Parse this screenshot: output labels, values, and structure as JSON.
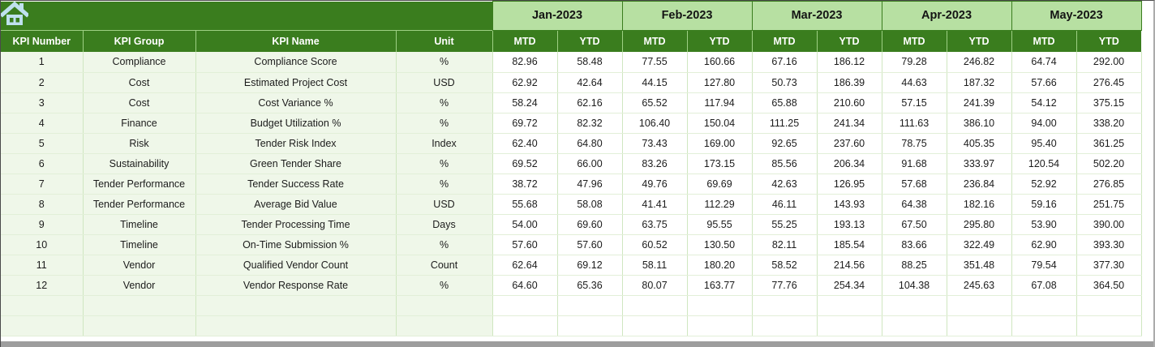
{
  "table": {
    "left_columns": [
      "KPI Number",
      "KPI Group",
      "KPI Name",
      "Unit"
    ],
    "months": [
      "Jan-2023",
      "Feb-2023",
      "Mar-2023",
      "Apr-2023",
      "May-2023"
    ],
    "period_labels": [
      "MTD",
      "YTD"
    ],
    "rows": [
      {
        "kpi_number": "1",
        "kpi_group": "Compliance",
        "kpi_name": "Compliance Score",
        "unit": "%",
        "values": [
          "82.96",
          "58.48",
          "77.55",
          "160.66",
          "67.16",
          "186.12",
          "79.28",
          "246.82",
          "64.74",
          "292.00"
        ]
      },
      {
        "kpi_number": "2",
        "kpi_group": "Cost",
        "kpi_name": "Estimated Project Cost",
        "unit": "USD",
        "values": [
          "62.92",
          "42.64",
          "44.15",
          "127.80",
          "50.73",
          "186.39",
          "44.63",
          "187.32",
          "57.66",
          "276.45"
        ]
      },
      {
        "kpi_number": "3",
        "kpi_group": "Cost",
        "kpi_name": "Cost Variance %",
        "unit": "%",
        "values": [
          "58.24",
          "62.16",
          "65.52",
          "117.94",
          "65.88",
          "210.60",
          "57.15",
          "241.39",
          "54.12",
          "375.15"
        ]
      },
      {
        "kpi_number": "4",
        "kpi_group": "Finance",
        "kpi_name": "Budget Utilization %",
        "unit": "%",
        "values": [
          "69.72",
          "82.32",
          "106.40",
          "150.04",
          "111.25",
          "241.34",
          "111.63",
          "386.10",
          "94.00",
          "338.20"
        ]
      },
      {
        "kpi_number": "5",
        "kpi_group": "Risk",
        "kpi_name": "Tender Risk Index",
        "unit": "Index",
        "values": [
          "62.40",
          "64.80",
          "73.43",
          "169.00",
          "92.65",
          "237.60",
          "78.75",
          "405.35",
          "95.40",
          "361.25"
        ]
      },
      {
        "kpi_number": "6",
        "kpi_group": "Sustainability",
        "kpi_name": "Green Tender Share",
        "unit": "%",
        "values": [
          "69.52",
          "66.00",
          "83.26",
          "173.15",
          "85.56",
          "206.34",
          "91.68",
          "333.97",
          "120.54",
          "502.20"
        ]
      },
      {
        "kpi_number": "7",
        "kpi_group": "Tender Performance",
        "kpi_name": "Tender Success Rate",
        "unit": "%",
        "values": [
          "38.72",
          "47.96",
          "49.76",
          "69.69",
          "42.63",
          "126.95",
          "57.68",
          "236.84",
          "52.92",
          "276.85"
        ]
      },
      {
        "kpi_number": "8",
        "kpi_group": "Tender Performance",
        "kpi_name": "Average Bid Value",
        "unit": "USD",
        "values": [
          "55.68",
          "58.08",
          "41.41",
          "112.29",
          "46.11",
          "143.93",
          "64.38",
          "182.16",
          "59.16",
          "251.75"
        ]
      },
      {
        "kpi_number": "9",
        "kpi_group": "Timeline",
        "kpi_name": "Tender Processing Time",
        "unit": "Days",
        "values": [
          "54.00",
          "69.60",
          "63.75",
          "95.55",
          "55.25",
          "193.13",
          "67.50",
          "295.80",
          "53.90",
          "390.00"
        ]
      },
      {
        "kpi_number": "10",
        "kpi_group": "Timeline",
        "kpi_name": "On-Time Submission %",
        "unit": "%",
        "values": [
          "57.60",
          "57.60",
          "60.52",
          "130.50",
          "82.11",
          "185.54",
          "83.66",
          "322.49",
          "62.90",
          "393.30"
        ]
      },
      {
        "kpi_number": "11",
        "kpi_group": "Vendor",
        "kpi_name": "Qualified Vendor Count",
        "unit": "Count",
        "values": [
          "62.64",
          "69.12",
          "58.11",
          "180.20",
          "58.52",
          "214.56",
          "88.25",
          "351.48",
          "79.54",
          "377.30"
        ]
      },
      {
        "kpi_number": "12",
        "kpi_group": "Vendor",
        "kpi_name": "Vendor Response Rate",
        "unit": "%",
        "values": [
          "64.60",
          "65.36",
          "80.07",
          "163.77",
          "77.76",
          "254.34",
          "104.38",
          "245.63",
          "67.08",
          "364.50"
        ]
      }
    ],
    "empty_row_count": 2
  },
  "icons": {
    "home": "home-icon"
  },
  "colors": {
    "header_dark_green": "#3a7d1e",
    "header_light_green": "#b7e0a2",
    "row_tint_green": "#eff7e9",
    "grid_border_green": "#cfe7c0",
    "home_icon_blue": "#bfe0ee",
    "scrollbar_gray": "#9d9d9d"
  }
}
